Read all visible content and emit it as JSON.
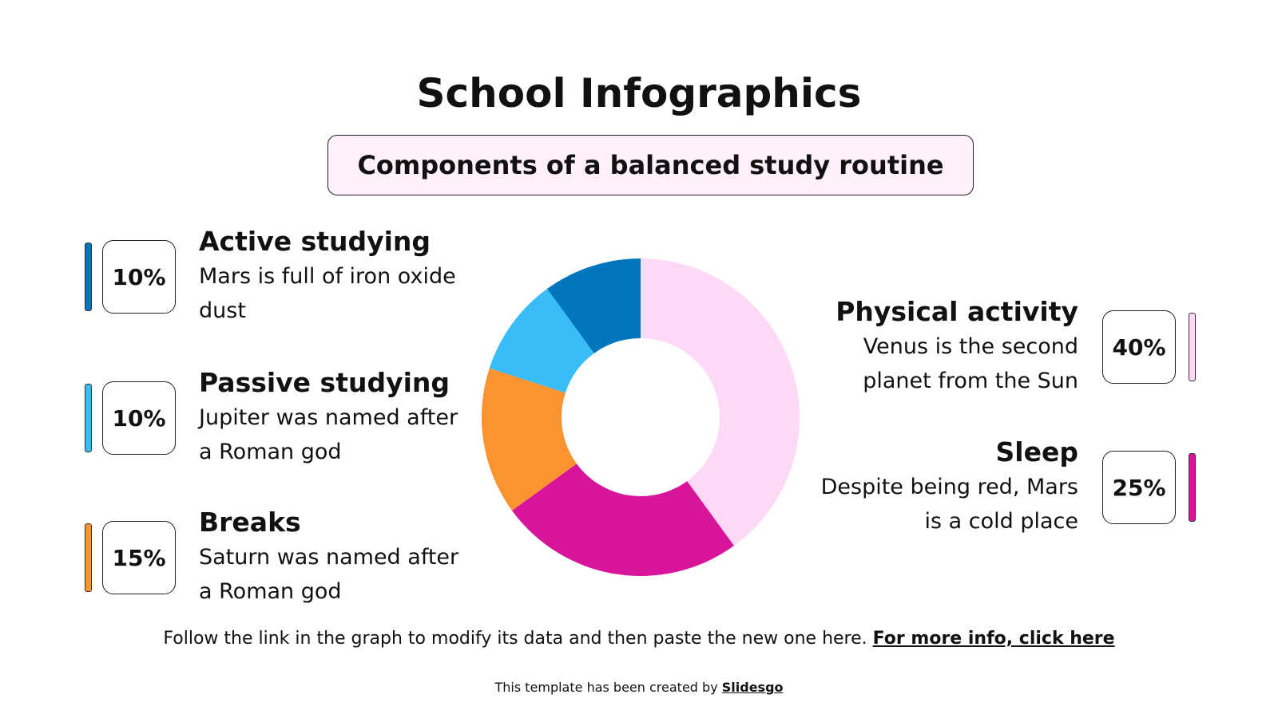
{
  "chart_data": {
    "type": "pie",
    "title": "School Infographics",
    "subtitle": "Components of a balanced study routine",
    "categories": [
      "Physical activity",
      "Sleep",
      "Breaks",
      "Passive studying",
      "Active studying"
    ],
    "values": [
      40,
      25,
      15,
      10,
      10
    ],
    "value_labels": [
      "40%",
      "25%",
      "15%",
      "10%",
      "10%"
    ],
    "descriptions": [
      "Venus is the second planet from the Sun",
      "Despite being red, Mars is a cold place",
      "Saturn was named after a Roman god",
      "Jupiter was named after a Roman god",
      "Mars is full of iron oxide dust"
    ],
    "colors": [
      "#fdd9f6",
      "#d8149b",
      "#fb9330",
      "#38bdf8",
      "#0176be"
    ]
  },
  "footer": {
    "note": "Follow the link in the graph to modify its data and then paste the new one here.",
    "link": "For more info, click here",
    "credit": "This template has been created by",
    "credit_link": "Slidesgo"
  }
}
